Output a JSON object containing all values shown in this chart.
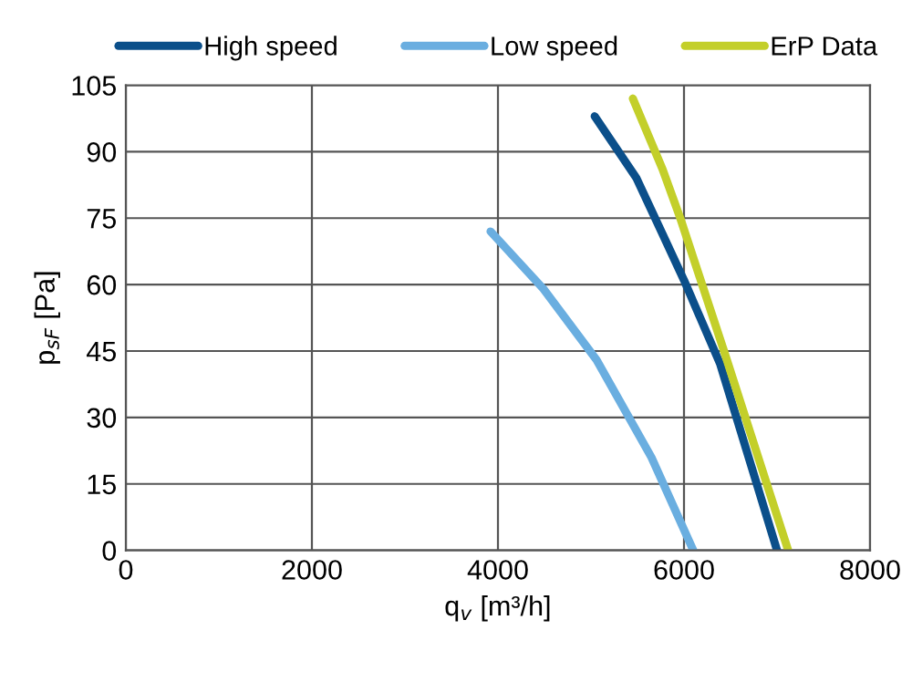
{
  "chart_data": {
    "type": "line",
    "xlabel": "q$_{v}$ [m³/h]",
    "ylabel": "p$_{sF}$ [Pa]",
    "xlim": [
      0,
      8000
    ],
    "xticks": [
      0,
      2000,
      4000,
      6000,
      8000
    ],
    "ylim": [
      0,
      105
    ],
    "yticks": [
      0,
      15,
      30,
      45,
      60,
      75,
      90,
      105
    ],
    "grid": true,
    "legend": "top",
    "marker": "none",
    "line_style": "solid",
    "series": [
      {
        "name": "High speed",
        "color": "#0b4f8a",
        "x": [
          5040,
          5490,
          6000,
          6390,
          7000
        ],
        "values": [
          98,
          84,
          61,
          42,
          0
        ]
      },
      {
        "name": "Low speed",
        "color": "#6aaee0",
        "x": [
          3920,
          4490,
          5060,
          5650,
          6100
        ],
        "values": [
          72,
          59,
          43,
          21,
          0
        ]
      },
      {
        "name": "ErP Data",
        "color": "#c3cf2a",
        "x": [
          5450,
          5770,
          5960,
          6430,
          7120
        ],
        "values": [
          102,
          86,
          75,
          45,
          0
        ]
      }
    ]
  }
}
